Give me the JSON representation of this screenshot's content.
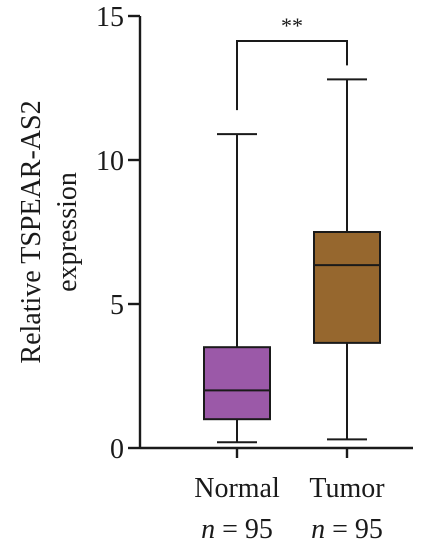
{
  "chart_data": {
    "type": "boxplot",
    "ylabel_line1": "Relative TSPEAR-AS2",
    "ylabel_line2": "expression",
    "ylim": [
      0,
      15
    ],
    "yticks": [
      0,
      5,
      10,
      15
    ],
    "grid": false,
    "groups": [
      {
        "name": "Normal",
        "n_text": "n = 95",
        "min": 0.2,
        "q1": 1.0,
        "median": 2.0,
        "q3": 3.5,
        "max": 10.9,
        "color": "#9b59a8"
      },
      {
        "name": "Tumor",
        "n_text": "n = 95",
        "min": 0.3,
        "q1": 3.65,
        "median": 6.35,
        "q3": 7.5,
        "max": 12.8,
        "color": "#96672e"
      }
    ],
    "significance": {
      "label": "**",
      "between": [
        "Normal",
        "Tumor"
      ]
    }
  }
}
